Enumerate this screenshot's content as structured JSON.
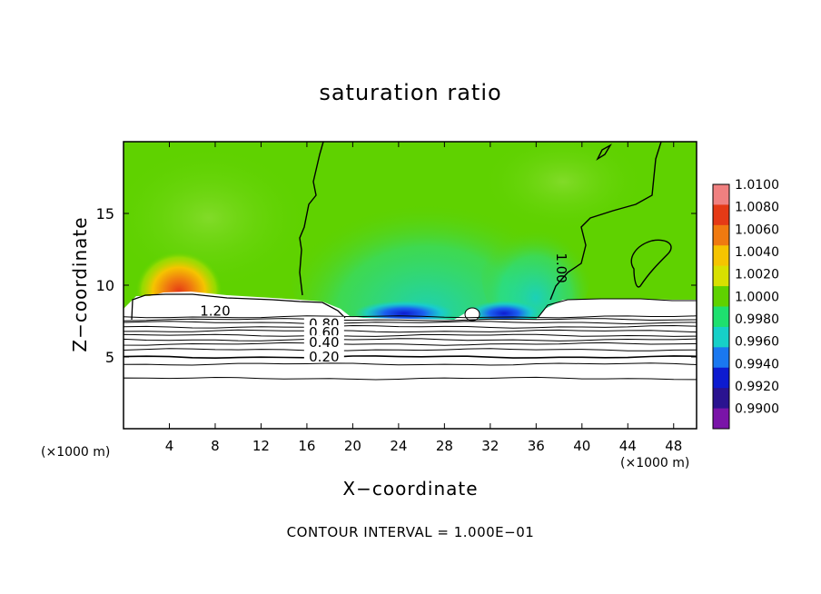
{
  "chart_data": {
    "type": "heatmap",
    "title": "saturation ratio",
    "xlabel": "X−coordinate",
    "ylabel": "Z−coordinate",
    "x_unit": "(×1000 m)",
    "y_unit": "(×1000 m)",
    "footnote": "CONTOUR INTERVAL = 1.000E−01",
    "xlim": [
      0,
      50
    ],
    "ylim": [
      0,
      20
    ],
    "x_ticks": [
      "4",
      "8",
      "12",
      "16",
      "20",
      "24",
      "28",
      "32",
      "36",
      "40",
      "44",
      "48"
    ],
    "y_ticks": [
      "5",
      "10",
      "15"
    ],
    "colorbar": {
      "labels": [
        "1.0100",
        "1.0080",
        "1.0060",
        "1.0040",
        "1.0020",
        "1.0000",
        "0.9980",
        "0.9960",
        "0.9940",
        "0.9920",
        "0.9900"
      ],
      "values": [
        1.01,
        1.008,
        1.006,
        1.004,
        1.002,
        1.0,
        0.998,
        0.996,
        0.994,
        0.992,
        0.99
      ],
      "colors": [
        "#f08080",
        "#e53a16",
        "#f07a10",
        "#f5c400",
        "#d8e000",
        "#5fd200",
        "#1ee06f",
        "#16d0c8",
        "#1a78f0",
        "#0d1bd0",
        "#2a1390",
        "#7a14a8"
      ]
    },
    "contour_labels": [
      {
        "text": "1.20",
        "x": 8,
        "z": 8.2
      },
      {
        "text": "0.80",
        "x": 17.5,
        "z": 7.3
      },
      {
        "text": "0.60",
        "x": 17.5,
        "z": 6.7
      },
      {
        "text": "0.40",
        "x": 17.5,
        "z": 6.0
      },
      {
        "text": "0.20",
        "x": 17.5,
        "z": 5.0
      },
      {
        "text": "1.00",
        "x": 38.2,
        "z": 11.2
      }
    ],
    "contour_levels_below_cloud": [
      7.8,
      7.6,
      7.4,
      7.1,
      6.8,
      6.5,
      6.2,
      5.9,
      5.5,
      5.0,
      4.5,
      3.5
    ],
    "hotspots": [
      {
        "label": "supersaturated maximum",
        "x": 5,
        "z": 9.5,
        "value": 1.007
      },
      {
        "label": "subsaturated core",
        "x": 24.5,
        "z": 8.0,
        "value": 0.992
      },
      {
        "label": "subsaturated core",
        "x": 33.5,
        "z": 8.0,
        "value": 0.992
      }
    ]
  }
}
